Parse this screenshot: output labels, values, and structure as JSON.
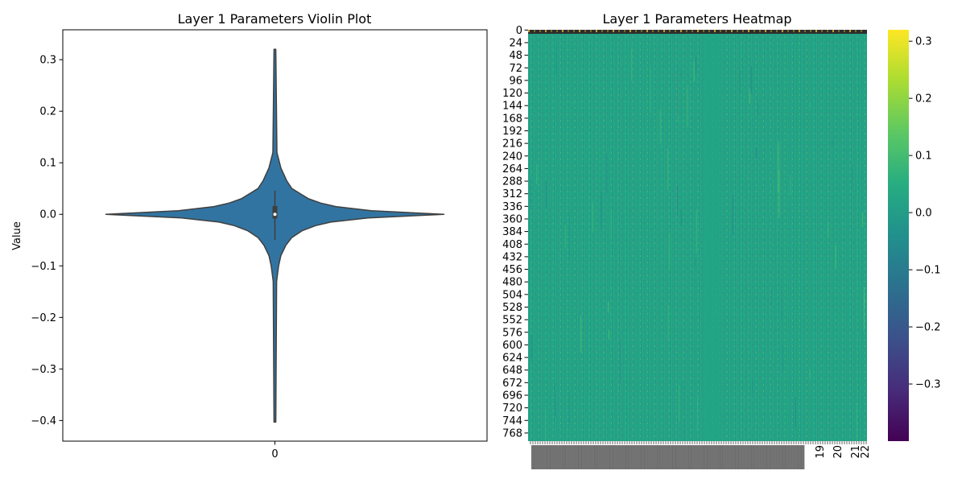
{
  "chart_data": [
    {
      "type": "violin",
      "title": "Layer 1 Parameters Violin Plot",
      "xlabel": "",
      "ylabel": "Value",
      "ylim": [
        -0.44,
        0.358
      ],
      "x_categories": [
        "0"
      ],
      "y_ticks": [
        0.3,
        0.2,
        0.1,
        0.0,
        -0.1,
        -0.2,
        -0.3,
        -0.4
      ],
      "y_tick_labels": [
        "0.3",
        "0.2",
        "0.1",
        "0.0",
        "−0.1",
        "−0.2",
        "−0.3",
        "−0.4"
      ],
      "distribution": {
        "min": -0.403,
        "max": 0.32,
        "q1": -0.008,
        "median": 0.0,
        "q3": 0.016,
        "whisker_low": -0.05,
        "whisker_high": 0.046,
        "density_profile": [
          {
            "value": 0.32,
            "rel_width": 0.005
          },
          {
            "value": 0.12,
            "rel_width": 0.012
          },
          {
            "value": 0.09,
            "rel_width": 0.035
          },
          {
            "value": 0.065,
            "rel_width": 0.07
          },
          {
            "value": 0.05,
            "rel_width": 0.1
          },
          {
            "value": 0.04,
            "rel_width": 0.15
          },
          {
            "value": 0.03,
            "rel_width": 0.2
          },
          {
            "value": 0.022,
            "rel_width": 0.27
          },
          {
            "value": 0.015,
            "rel_width": 0.36
          },
          {
            "value": 0.007,
            "rel_width": 0.57
          },
          {
            "value": 0.0,
            "rel_width": 1.0
          },
          {
            "value": -0.007,
            "rel_width": 0.55
          },
          {
            "value": -0.015,
            "rel_width": 0.33
          },
          {
            "value": -0.022,
            "rel_width": 0.24
          },
          {
            "value": -0.032,
            "rel_width": 0.16
          },
          {
            "value": -0.045,
            "rel_width": 0.1
          },
          {
            "value": -0.06,
            "rel_width": 0.065
          },
          {
            "value": -0.08,
            "rel_width": 0.035
          },
          {
            "value": -0.1,
            "rel_width": 0.022
          },
          {
            "value": -0.13,
            "rel_width": 0.01
          },
          {
            "value": -0.403,
            "rel_width": 0.005
          }
        ]
      },
      "colors": {
        "fill": "#3274a1",
        "edge": "#3f3f3f"
      }
    },
    {
      "type": "heatmap",
      "title": "Layer 1 Parameters Heatmap",
      "colormap": "viridis",
      "vmin": -0.4,
      "vmax": 0.32,
      "rows": 784,
      "y_tick_labels": [
        "0",
        "24",
        "48",
        "72",
        "96",
        "120",
        "144",
        "168",
        "192",
        "216",
        "240",
        "264",
        "288",
        "312",
        "336",
        "360",
        "384",
        "408",
        "432",
        "456",
        "480",
        "504",
        "528",
        "552",
        "576",
        "600",
        "624",
        "648",
        "672",
        "696",
        "720",
        "744",
        "768"
      ],
      "x_tick_labels_visible": [
        "19",
        "20",
        "21",
        "22"
      ],
      "colorbar_ticks": [
        0.3,
        0.2,
        0.1,
        0.0,
        -0.1,
        -0.2,
        -0.3
      ],
      "colorbar_tick_labels": [
        "0.3",
        "0.2",
        "0.1",
        "0.0",
        "−0.1",
        "−0.2",
        "−0.3"
      ],
      "typical_value": 0.0
    }
  ]
}
